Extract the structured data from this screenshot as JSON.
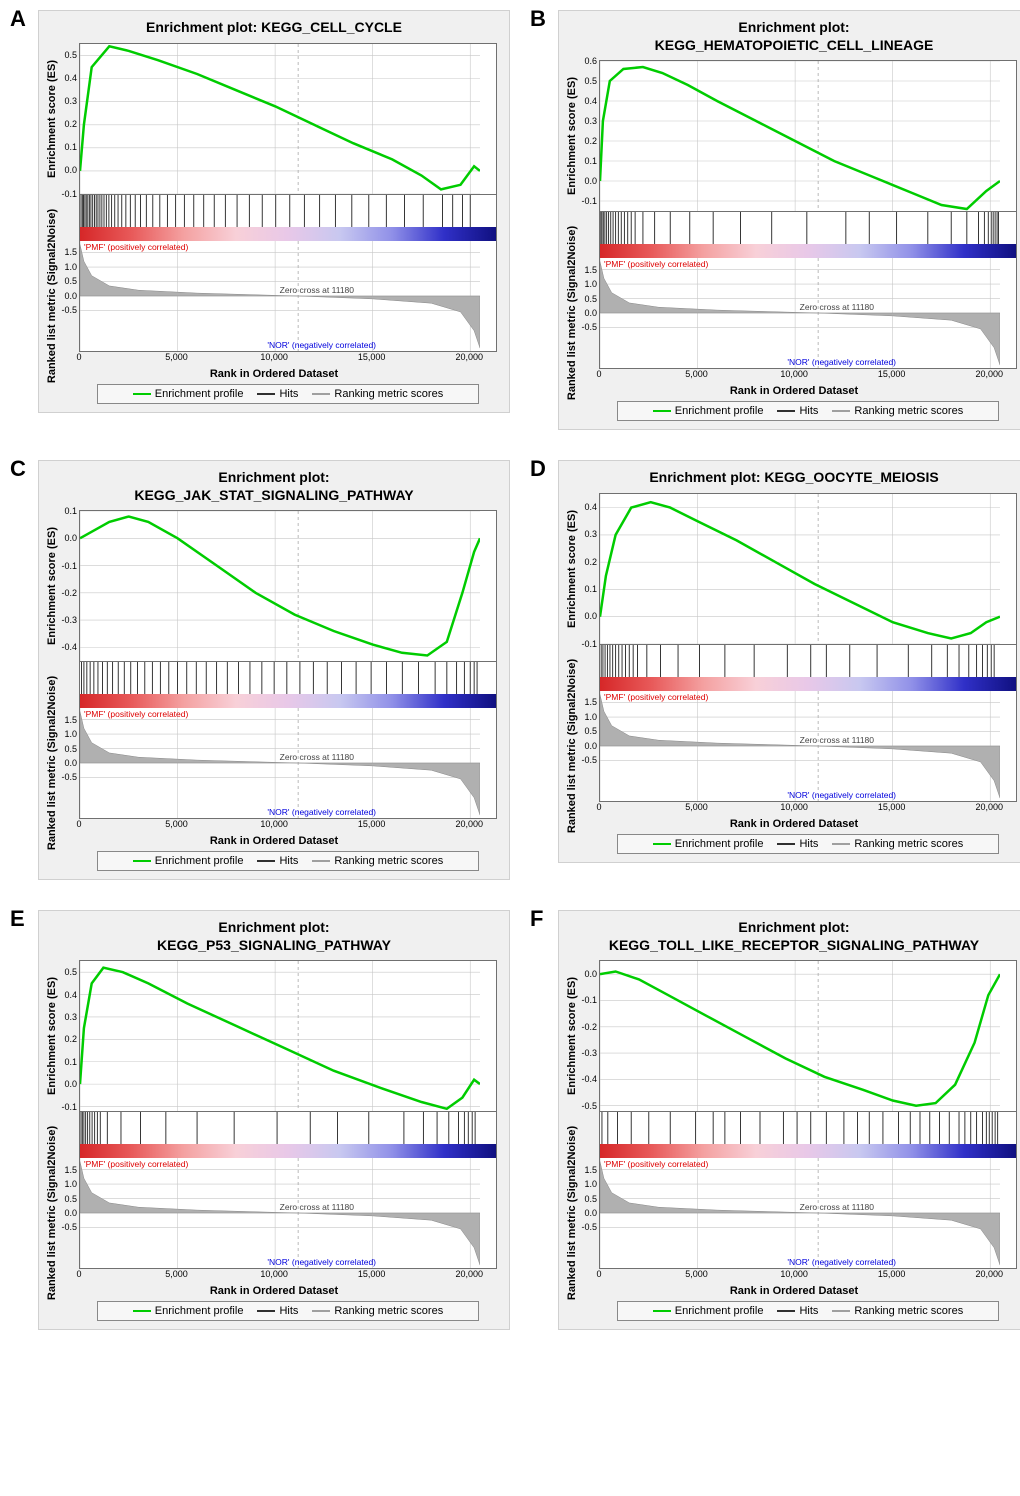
{
  "figure": {
    "xlabel": "Rank in Ordered Dataset",
    "es_ylabel": "Enrichment score (ES)",
    "rank_ylabel": "Ranked list metric (Signal2Noise)",
    "legend": [
      "Enrichment profile",
      "Hits",
      "Ranking metric scores"
    ],
    "pos_corr_label": "'PMF' (positively correlated)",
    "neg_corr_label": "'NOR' (negatively correlated)",
    "zero_cross_label": "Zero cross at 11180",
    "zero_cross_x": 11180,
    "x_range": [
      0,
      20500
    ],
    "x_ticks": [
      0,
      5000,
      10000,
      15000,
      20000
    ],
    "x_tick_labels": [
      "0",
      "5,000",
      "10,000",
      "15,000",
      "20,000"
    ],
    "rank_y_ticks": [
      -0.5,
      0.0,
      0.5,
      1.0,
      1.5
    ],
    "gradient_colors": [
      "#d62728",
      "#e85a5a",
      "#f4a1a1",
      "#f8d0d8",
      "#e8c8e8",
      "#c8c8f0",
      "#9090e8",
      "#3030c8",
      "#101080"
    ],
    "es_line_color": "#00cc00",
    "es_line_width": 2.5,
    "grid_color": "#c8c8c8",
    "bg_color": "#ffffff",
    "frame_bg": "#f0f0f0",
    "hit_color": "#202020",
    "rank_fill": "#b0b0b0",
    "rank_curve": [
      [
        0,
        1.78
      ],
      [
        200,
        1.2
      ],
      [
        600,
        0.7
      ],
      [
        1500,
        0.35
      ],
      [
        3000,
        0.2
      ],
      [
        6000,
        0.1
      ],
      [
        11180,
        0.0
      ],
      [
        15000,
        -0.1
      ],
      [
        18000,
        -0.25
      ],
      [
        19500,
        -0.55
      ],
      [
        20200,
        -1.2
      ],
      [
        20500,
        -1.8
      ]
    ]
  },
  "panels": [
    {
      "letter": "A",
      "title": "Enrichment plot: KEGG_CELL_CYCLE",
      "es_ylim": [
        -0.1,
        0.55
      ],
      "es_yticks": [
        -0.1,
        0.0,
        0.1,
        0.2,
        0.3,
        0.4,
        0.5
      ],
      "es_curve": [
        [
          0,
          0.0
        ],
        [
          200,
          0.2
        ],
        [
          600,
          0.45
        ],
        [
          1500,
          0.54
        ],
        [
          2500,
          0.52
        ],
        [
          4000,
          0.48
        ],
        [
          6000,
          0.42
        ],
        [
          8000,
          0.35
        ],
        [
          10000,
          0.28
        ],
        [
          12000,
          0.2
        ],
        [
          14000,
          0.12
        ],
        [
          16000,
          0.05
        ],
        [
          17500,
          -0.02
        ],
        [
          18500,
          -0.08
        ],
        [
          19500,
          -0.06
        ],
        [
          20200,
          0.02
        ],
        [
          20500,
          0.0
        ]
      ],
      "hits": [
        50,
        120,
        180,
        250,
        320,
        400,
        480,
        560,
        650,
        740,
        830,
        920,
        1020,
        1120,
        1230,
        1350,
        1480,
        1620,
        1780,
        1950,
        2140,
        2350,
        2580,
        2830,
        3100,
        3400,
        3730,
        4090,
        4480,
        4900,
        5350,
        5830,
        6340,
        6880,
        7450,
        8050,
        8680,
        9340,
        10030,
        10750,
        11500,
        12280,
        13090,
        13930,
        14800,
        15700,
        16630,
        17590,
        18580,
        19100,
        19600,
        20000
      ]
    },
    {
      "letter": "B",
      "title": "Enrichment plot: KEGG_HEMATOPOIETIC_CELL_LINEAGE",
      "es_ylim": [
        -0.15,
        0.6
      ],
      "es_yticks": [
        -0.1,
        0.0,
        0.1,
        0.2,
        0.3,
        0.4,
        0.5,
        0.6
      ],
      "es_curve": [
        [
          0,
          0.0
        ],
        [
          150,
          0.3
        ],
        [
          500,
          0.5
        ],
        [
          1200,
          0.56
        ],
        [
          2200,
          0.57
        ],
        [
          3200,
          0.54
        ],
        [
          4500,
          0.48
        ],
        [
          6000,
          0.4
        ],
        [
          8000,
          0.3
        ],
        [
          10000,
          0.2
        ],
        [
          12000,
          0.1
        ],
        [
          14000,
          0.02
        ],
        [
          16000,
          -0.06
        ],
        [
          17500,
          -0.12
        ],
        [
          18800,
          -0.14
        ],
        [
          19800,
          -0.05
        ],
        [
          20500,
          0.0
        ]
      ],
      "hits": [
        40,
        100,
        170,
        250,
        340,
        440,
        550,
        670,
        800,
        940,
        1090,
        1250,
        1420,
        1600,
        1800,
        2200,
        2800,
        3600,
        4600,
        5800,
        7200,
        8800,
        10600,
        12600,
        13800,
        15200,
        16800,
        18000,
        18800,
        19400,
        19700,
        19900,
        20050,
        20150,
        20250,
        20350,
        20420
      ]
    },
    {
      "letter": "C",
      "title": "Enrichment plot: KEGG_JAK_STAT_SIGNALING_PATHWAY",
      "es_ylim": [
        -0.45,
        0.1
      ],
      "es_yticks": [
        -0.4,
        -0.3,
        -0.2,
        -0.1,
        0.0,
        0.1
      ],
      "es_curve": [
        [
          0,
          0.0
        ],
        [
          500,
          0.02
        ],
        [
          1500,
          0.06
        ],
        [
          2500,
          0.08
        ],
        [
          3500,
          0.06
        ],
        [
          5000,
          0.0
        ],
        [
          7000,
          -0.1
        ],
        [
          9000,
          -0.2
        ],
        [
          11000,
          -0.28
        ],
        [
          13000,
          -0.34
        ],
        [
          15000,
          -0.39
        ],
        [
          16500,
          -0.42
        ],
        [
          17800,
          -0.43
        ],
        [
          18800,
          -0.38
        ],
        [
          19600,
          -0.2
        ],
        [
          20200,
          -0.05
        ],
        [
          20500,
          0.0
        ]
      ],
      "hits": [
        80,
        200,
        350,
        520,
        710,
        920,
        1150,
        1400,
        1670,
        1960,
        2270,
        2600,
        2950,
        3320,
        3710,
        4120,
        4550,
        5000,
        5470,
        5960,
        6470,
        7000,
        7550,
        8120,
        8710,
        9320,
        9950,
        10600,
        11270,
        11960,
        12670,
        13400,
        14150,
        14920,
        15710,
        16520,
        17350,
        18200,
        18800,
        19300,
        19700,
        20000,
        20200,
        20350
      ]
    },
    {
      "letter": "D",
      "title": "Enrichment plot: KEGG_OOCYTE_MEIOSIS",
      "es_ylim": [
        -0.1,
        0.45
      ],
      "es_yticks": [
        -0.1,
        0.0,
        0.1,
        0.2,
        0.3,
        0.4
      ],
      "es_curve": [
        [
          0,
          0.0
        ],
        [
          300,
          0.15
        ],
        [
          800,
          0.3
        ],
        [
          1600,
          0.4
        ],
        [
          2600,
          0.42
        ],
        [
          3600,
          0.4
        ],
        [
          5000,
          0.35
        ],
        [
          7000,
          0.28
        ],
        [
          9000,
          0.2
        ],
        [
          11000,
          0.12
        ],
        [
          13000,
          0.05
        ],
        [
          15000,
          -0.02
        ],
        [
          16800,
          -0.06
        ],
        [
          18000,
          -0.08
        ],
        [
          19000,
          -0.06
        ],
        [
          19800,
          -0.02
        ],
        [
          20500,
          0.0
        ]
      ],
      "hits": [
        60,
        150,
        260,
        380,
        510,
        650,
        800,
        960,
        1130,
        1310,
        1500,
        1700,
        1920,
        2400,
        3100,
        4000,
        5100,
        6400,
        7900,
        9600,
        10800,
        11600,
        12800,
        14200,
        15800,
        17000,
        17800,
        18400,
        18900,
        19300,
        19600,
        19850,
        20050,
        20200
      ]
    },
    {
      "letter": "E",
      "title": "Enrichment plot: KEGG_P53_SIGNALING_PATHWAY",
      "es_ylim": [
        -0.12,
        0.55
      ],
      "es_yticks": [
        -0.1,
        0.0,
        0.1,
        0.2,
        0.3,
        0.4,
        0.5
      ],
      "es_curve": [
        [
          0,
          0.0
        ],
        [
          200,
          0.25
        ],
        [
          600,
          0.45
        ],
        [
          1200,
          0.52
        ],
        [
          2200,
          0.5
        ],
        [
          3500,
          0.45
        ],
        [
          5500,
          0.36
        ],
        [
          8000,
          0.26
        ],
        [
          10500,
          0.16
        ],
        [
          13000,
          0.06
        ],
        [
          15500,
          -0.02
        ],
        [
          17500,
          -0.08
        ],
        [
          18800,
          -0.11
        ],
        [
          19600,
          -0.06
        ],
        [
          20200,
          0.02
        ],
        [
          20500,
          0.0
        ]
      ],
      "hits": [
        50,
        120,
        200,
        290,
        390,
        500,
        620,
        750,
        890,
        1040,
        1400,
        2100,
        3100,
        4400,
        6000,
        7900,
        10100,
        11800,
        13200,
        14800,
        16600,
        17600,
        18300,
        18900,
        19400,
        19700,
        19900,
        20100,
        20250
      ]
    },
    {
      "letter": "F",
      "title": "Enrichment plot: KEGG_TOLL_LIKE_RECEPTOR_SIGNALING_PATHWAY",
      "es_ylim": [
        -0.52,
        0.05
      ],
      "es_yticks": [
        -0.5,
        -0.4,
        -0.3,
        -0.2,
        -0.1,
        0.0
      ],
      "es_curve": [
        [
          0,
          0.0
        ],
        [
          800,
          0.01
        ],
        [
          2000,
          -0.02
        ],
        [
          3500,
          -0.08
        ],
        [
          5500,
          -0.16
        ],
        [
          7500,
          -0.24
        ],
        [
          9500,
          -0.32
        ],
        [
          11500,
          -0.39
        ],
        [
          13500,
          -0.44
        ],
        [
          15000,
          -0.48
        ],
        [
          16200,
          -0.5
        ],
        [
          17200,
          -0.49
        ],
        [
          18200,
          -0.42
        ],
        [
          19200,
          -0.26
        ],
        [
          19900,
          -0.08
        ],
        [
          20500,
          0.0
        ]
      ],
      "hits": [
        100,
        400,
        900,
        1600,
        2500,
        3600,
        4900,
        5800,
        6400,
        7200,
        8200,
        9400,
        10100,
        10800,
        11600,
        12500,
        13200,
        13800,
        14500,
        15300,
        15900,
        16400,
        16900,
        17400,
        17900,
        18400,
        18700,
        19000,
        19300,
        19600,
        19800,
        19950,
        20100,
        20250,
        20380
      ]
    }
  ]
}
